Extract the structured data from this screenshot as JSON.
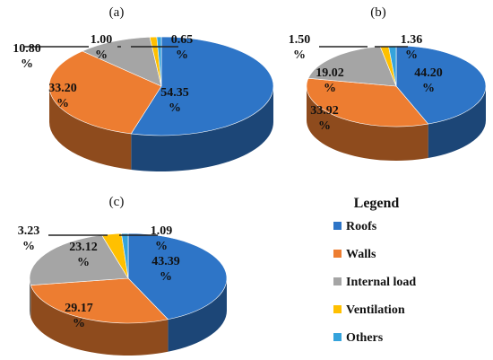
{
  "colors": {
    "roofs": "#2E75C7",
    "walls": "#ED7D31",
    "internal": "#A5A5A5",
    "ventilation": "#FFC000",
    "others": "#35A3DC"
  },
  "legend": {
    "title": "Legend",
    "items": [
      {
        "key": "roofs",
        "label": "Roofs"
      },
      {
        "key": "walls",
        "label": "Walls"
      },
      {
        "key": "internal",
        "label": "Internal load"
      },
      {
        "key": "ventilation",
        "label": "Ventilation"
      },
      {
        "key": "others",
        "label": "Others"
      }
    ]
  },
  "chart_data": [
    {
      "type": "pie",
      "title": "(a)",
      "categories": [
        "Roofs",
        "Walls",
        "Internal load",
        "Ventilation",
        "Others"
      ],
      "values": [
        54.35,
        33.2,
        10.8,
        1.0,
        0.65
      ],
      "value_labels": [
        [
          "54.35",
          "%"
        ],
        [
          "33.20",
          "%"
        ],
        [
          "10.80",
          "%"
        ],
        [
          "1.00",
          "%"
        ],
        [
          "0.65",
          "%"
        ]
      ]
    },
    {
      "type": "pie",
      "title": "(b)",
      "categories": [
        "Roofs",
        "Walls",
        "Internal load",
        "Ventilation",
        "Others"
      ],
      "values": [
        44.2,
        33.92,
        19.02,
        1.5,
        1.36
      ],
      "value_labels": [
        [
          "44.20",
          "%"
        ],
        [
          "33.92",
          "%"
        ],
        [
          "19.02",
          "%"
        ],
        [
          "1.50",
          "%"
        ],
        [
          "1.36",
          "%"
        ]
      ]
    },
    {
      "type": "pie",
      "title": "(c)",
      "categories": [
        "Roofs",
        "Walls",
        "Internal load",
        "Ventilation",
        "Others"
      ],
      "values": [
        43.39,
        29.17,
        23.12,
        3.23,
        1.09
      ],
      "value_labels": [
        [
          "43.39",
          "%"
        ],
        [
          "29.17",
          "%"
        ],
        [
          "23.12",
          "%"
        ],
        [
          "3.23",
          "%"
        ],
        [
          "1.09",
          "%"
        ]
      ]
    }
  ]
}
